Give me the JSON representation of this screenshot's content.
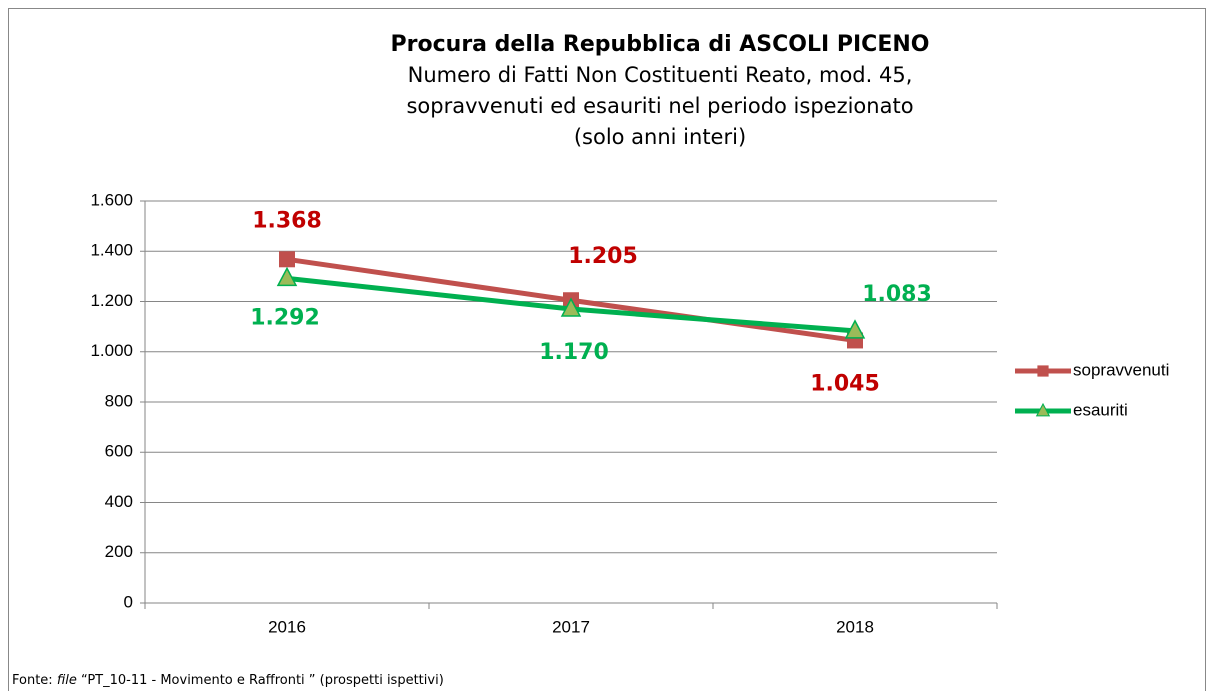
{
  "chart_data": {
    "type": "line",
    "title": "Procura della Repubblica di ASCOLI PICENO",
    "subtitle": [
      "Numero di Fatti Non Costituenti Reato, mod. 45,",
      "sopravvenuti ed esauriti nel periodo ispezionato",
      "(solo anni interi)"
    ],
    "categories": [
      "2016",
      "2017",
      "2018"
    ],
    "series": [
      {
        "name": "sopravvenuti",
        "color": "#c0504d",
        "label_color": "#c00000",
        "marker": "square",
        "values": [
          1368,
          1205,
          1045
        ],
        "value_labels": [
          "1.368",
          "1.205",
          "1.045"
        ]
      },
      {
        "name": "esauriti",
        "color": "#00b050",
        "label_color": "#00b050",
        "marker": "triangle",
        "marker_fill": "#9bbb59",
        "values": [
          1292,
          1170,
          1083
        ],
        "value_labels": [
          "1.292",
          "1.170",
          "1.083"
        ]
      }
    ],
    "ylim": [
      0,
      1600
    ],
    "yticks": [
      0,
      200,
      400,
      600,
      800,
      {
        "value": 1000,
        "label": "1.000"
      },
      {
        "value": 1200,
        "label": "1.200"
      },
      {
        "value": 1400,
        "label": "1.400"
      },
      {
        "value": 1600,
        "label": "1.600"
      }
    ],
    "grid": true,
    "legend": "right",
    "source": {
      "prefix": "Fonte:",
      "file": "file",
      "rest": "“PT_10-11 - Movimento e Raffronti ” (prospetti ispettivi)"
    }
  }
}
